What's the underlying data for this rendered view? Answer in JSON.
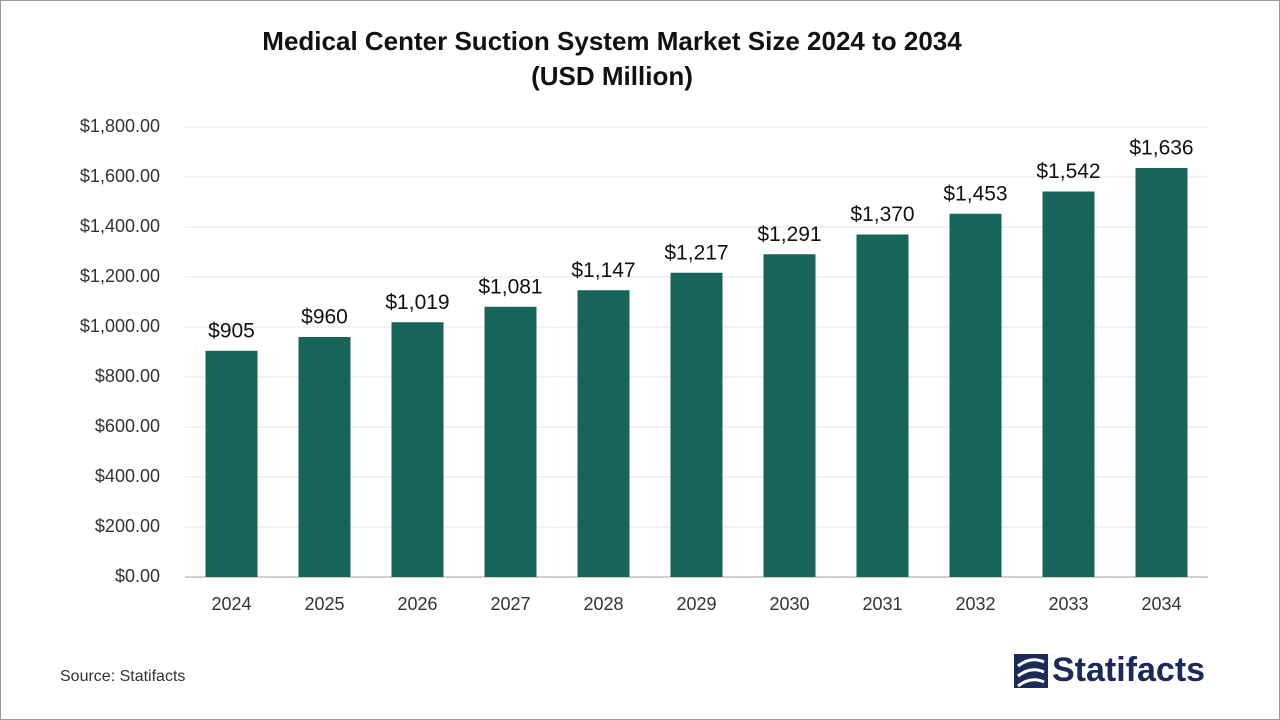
{
  "chart_data": {
    "type": "bar",
    "title": "Medical Center Suction System Market Size 2024 to 2034",
    "subtitle": "(USD Million)",
    "categories": [
      "2024",
      "2025",
      "2026",
      "2027",
      "2028",
      "2029",
      "2030",
      "2031",
      "2032",
      "2033",
      "2034"
    ],
    "values": [
      905,
      960,
      1019,
      1081,
      1147,
      1217,
      1291,
      1370,
      1453,
      1542,
      1636
    ],
    "value_labels": [
      "$905",
      "$960",
      "$1,019",
      "$1,081",
      "$1,147",
      "$1,217",
      "$1,291",
      "$1,370",
      "$1,453",
      "$1,542",
      "$1,636"
    ],
    "color": "#17645a",
    "ylim": [
      0,
      1800
    ],
    "yticks": [
      {
        "value": 0,
        "label": "$0.00"
      },
      {
        "value": 200,
        "label": "$200.00"
      },
      {
        "value": 400,
        "label": "$400.00"
      },
      {
        "value": 600,
        "label": "$600.00"
      },
      {
        "value": 800,
        "label": "$800.00"
      },
      {
        "value": 1000,
        "label": "$1,000.00"
      },
      {
        "value": 1200,
        "label": "$1,200.00"
      },
      {
        "value": 1400,
        "label": "$1,400.00"
      },
      {
        "value": 1600,
        "label": "$1,600.00"
      },
      {
        "value": 1800,
        "label": "$1,800.00"
      }
    ],
    "grid": true,
    "source": "Source: Statifacts",
    "logo": "Statifacts"
  }
}
